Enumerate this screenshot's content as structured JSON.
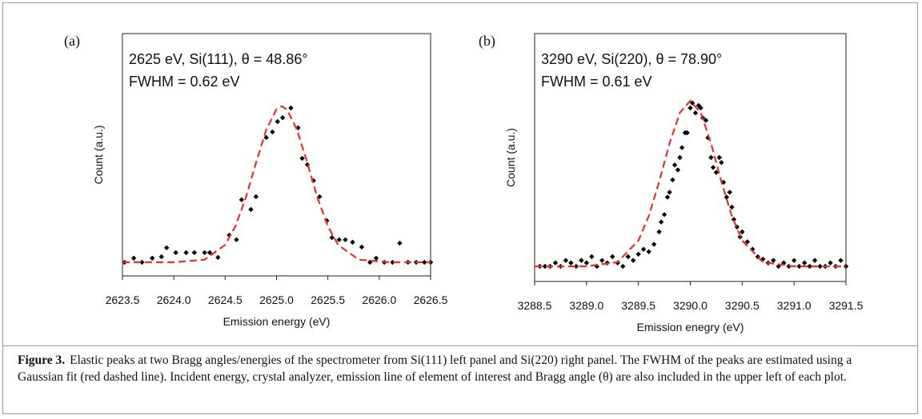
{
  "chart_data": [
    {
      "type": "scatter",
      "panel": "(a)",
      "annotation": [
        "2625 eV, Si(111), θ = 48.86°",
        "FWHM = 0.62 eV"
      ],
      "xlabel": "Emission energy (eV)",
      "ylabel": "Count (a.u.)",
      "xlim": [
        2623.5,
        2626.5
      ],
      "ylim": [
        0,
        1
      ],
      "xticks": [
        2623.5,
        {
          "value": 2624,
          "label": "2624.0"
        },
        2624.5,
        {
          "value": 2625,
          "label": "2625.0"
        },
        2625.5,
        {
          "value": 2626,
          "label": "2626.0"
        },
        2626.5
      ],
      "series": [
        {
          "color": "#000000",
          "marker": "diamond",
          "x": [
            2623.52,
            2623.61,
            2623.69,
            2623.79,
            2623.88,
            2623.93,
            2624.02,
            2624.12,
            2624.2,
            2624.3,
            2624.35,
            2624.43,
            2624.54,
            2624.61,
            2624.66,
            2624.75,
            2624.8,
            2624.9,
            2624.96,
            2625.01,
            2625.06,
            2625.14,
            2625.21,
            2625.25,
            2625.3,
            2625.36,
            2625.42,
            2625.49,
            2625.54,
            2625.61,
            2625.67,
            2625.74,
            2625.83,
            2625.91,
            2625.97,
            2626.05,
            2626.13,
            2626.2,
            2626.28,
            2626.36,
            2626.44,
            2626.5
          ],
          "values": [
            0.056,
            0.073,
            0.056,
            0.073,
            0.079,
            0.116,
            0.096,
            0.096,
            0.096,
            0.096,
            0.096,
            0.076,
            0.168,
            0.149,
            0.314,
            0.274,
            0.327,
            0.571,
            0.594,
            0.637,
            0.653,
            0.693,
            0.611,
            0.485,
            0.459,
            0.393,
            0.327,
            0.228,
            0.158,
            0.149,
            0.149,
            0.139,
            0.119,
            0.056,
            0.073,
            0.056,
            0.056,
            0.135,
            0.056,
            0.056,
            0.056,
            0.056
          ]
        },
        {
          "color": "#e8302a",
          "line": "dashed",
          "x": [
            2623.5,
            2624.0,
            2624.3,
            2624.5,
            2624.6,
            2624.7,
            2624.8,
            2624.9,
            2625.0,
            2625.05,
            2625.1,
            2625.2,
            2625.3,
            2625.4,
            2625.5,
            2625.6,
            2625.8,
            2626.1,
            2626.5
          ],
          "values": [
            0.056,
            0.056,
            0.067,
            0.128,
            0.205,
            0.321,
            0.466,
            0.603,
            0.688,
            0.7,
            0.688,
            0.603,
            0.466,
            0.321,
            0.205,
            0.128,
            0.067,
            0.056,
            0.056
          ]
        }
      ]
    },
    {
      "type": "scatter",
      "panel": "(b)",
      "annotation": [
        "3290 eV, Si(220), θ = 78.90°",
        "FWHM = 0.61 eV"
      ],
      "xlabel": "Emission enegry (eV)",
      "ylabel": "Count (a.u.)",
      "xlim": [
        3288.5,
        3291.5
      ],
      "ylim": [
        0,
        1
      ],
      "xticks": [
        3288.5,
        {
          "value": 3289,
          "label": "3289.0"
        },
        3289.5,
        {
          "value": 3290,
          "label": "3290.0"
        },
        3290.5,
        {
          "value": 3291,
          "label": "3291.0"
        },
        3291.5
      ],
      "series": [
        {
          "color": "#000000",
          "marker": "diamond",
          "x": [
            3288.55,
            3288.6,
            3288.65,
            3288.7,
            3288.75,
            3288.8,
            3288.85,
            3288.9,
            3288.95,
            3289.0,
            3289.05,
            3289.1,
            3289.15,
            3289.2,
            3289.25,
            3289.3,
            3289.35,
            3289.4,
            3289.45,
            3289.5,
            3289.55,
            3289.6,
            3289.65,
            3289.7,
            3289.72,
            3289.75,
            3289.78,
            3289.8,
            3289.83,
            3289.85,
            3289.88,
            3289.9,
            3289.92,
            3289.95,
            3289.97,
            3290.0,
            3290.02,
            3290.05,
            3290.08,
            3290.1,
            3290.12,
            3290.15,
            3290.17,
            3290.2,
            3290.22,
            3290.25,
            3290.28,
            3290.3,
            3290.32,
            3290.35,
            3290.38,
            3290.4,
            3290.42,
            3290.45,
            3290.48,
            3290.5,
            3290.55,
            3290.6,
            3290.65,
            3290.7,
            3290.75,
            3290.8,
            3290.85,
            3290.9,
            3290.95,
            3291.0,
            3291.05,
            3291.1,
            3291.15,
            3291.2,
            3291.25,
            3291.3,
            3291.35,
            3291.4,
            3291.45,
            3291.5
          ],
          "values": [
            0.061,
            0.061,
            0.061,
            0.075,
            0.061,
            0.085,
            0.075,
            0.061,
            0.085,
            0.075,
            0.1,
            0.061,
            0.085,
            0.075,
            0.1,
            0.075,
            0.061,
            0.1,
            0.085,
            0.11,
            0.13,
            0.12,
            0.15,
            0.2,
            0.24,
            0.27,
            0.34,
            0.36,
            0.41,
            0.47,
            0.45,
            0.5,
            0.54,
            0.6,
            0.6,
            0.7,
            0.72,
            0.68,
            0.71,
            0.7,
            0.66,
            0.65,
            0.58,
            0.5,
            0.46,
            0.44,
            0.5,
            0.48,
            0.4,
            0.34,
            0.36,
            0.3,
            0.25,
            0.22,
            0.18,
            0.2,
            0.16,
            0.13,
            0.1,
            0.09,
            0.075,
            0.085,
            0.061,
            0.075,
            0.061,
            0.085,
            0.061,
            0.075,
            0.061,
            0.085,
            0.061,
            0.061,
            0.075,
            0.061,
            0.085,
            0.061
          ]
        },
        {
          "color": "#e8302a",
          "line": "dashed",
          "x": [
            3288.5,
            3289.0,
            3289.3,
            3289.5,
            3289.6,
            3289.7,
            3289.8,
            3289.9,
            3290.0,
            3290.1,
            3290.2,
            3290.3,
            3290.4,
            3290.5,
            3290.7,
            3291.0,
            3291.5
          ],
          "values": [
            0.061,
            0.061,
            0.078,
            0.165,
            0.264,
            0.402,
            0.557,
            0.681,
            0.729,
            0.681,
            0.557,
            0.402,
            0.264,
            0.165,
            0.078,
            0.061,
            0.061
          ]
        }
      ]
    }
  ],
  "caption": {
    "label": "Figure 3.",
    "text": "Elastic peaks at two Bragg angles/energies of the spectrometer from Si(111) left panel and Si(220) right panel. The FWHM of the peaks are estimated using a Gaussian fit (red dashed line). Incident energy, crystal analyzer, emission line of element of interest and Bragg angle (θ) are also included in the upper left of each plot."
  }
}
